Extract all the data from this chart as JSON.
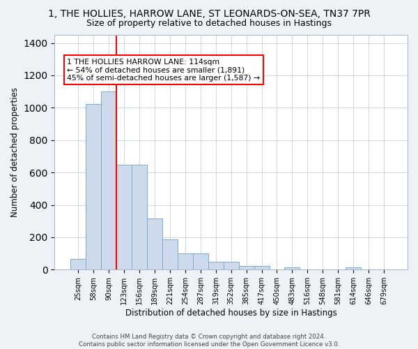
{
  "title": "1, THE HOLLIES, HARROW LANE, ST LEONARDS-ON-SEA, TN37 7PR",
  "subtitle": "Size of property relative to detached houses in Hastings",
  "xlabel": "Distribution of detached houses by size in Hastings",
  "ylabel": "Number of detached properties",
  "bar_color": "#ccdaeb",
  "bar_edge_color": "#7aaace",
  "categories": [
    "25sqm",
    "58sqm",
    "90sqm",
    "123sqm",
    "156sqm",
    "189sqm",
    "221sqm",
    "254sqm",
    "287sqm",
    "319sqm",
    "352sqm",
    "385sqm",
    "417sqm",
    "450sqm",
    "483sqm",
    "516sqm",
    "548sqm",
    "581sqm",
    "614sqm",
    "646sqm",
    "679sqm"
  ],
  "values": [
    65,
    1025,
    1100,
    650,
    650,
    315,
    185,
    100,
    100,
    50,
    47,
    25,
    25,
    0,
    15,
    0,
    0,
    0,
    15,
    0,
    0
  ],
  "annotation_text": "1 THE HOLLIES HARROW LANE: 114sqm\n← 54% of detached houses are smaller (1,891)\n45% of semi-detached houses are larger (1,587) →",
  "red_line_x": 2.5,
  "ylim": [
    0,
    1450
  ],
  "yticks": [
    0,
    200,
    400,
    600,
    800,
    1000,
    1200,
    1400
  ],
  "footer": "Contains HM Land Registry data © Crown copyright and database right 2024.\nContains public sector information licensed under the Open Government Licence v3.0.",
  "background_color": "#eef2f7",
  "plot_bg_color": "#ffffff"
}
